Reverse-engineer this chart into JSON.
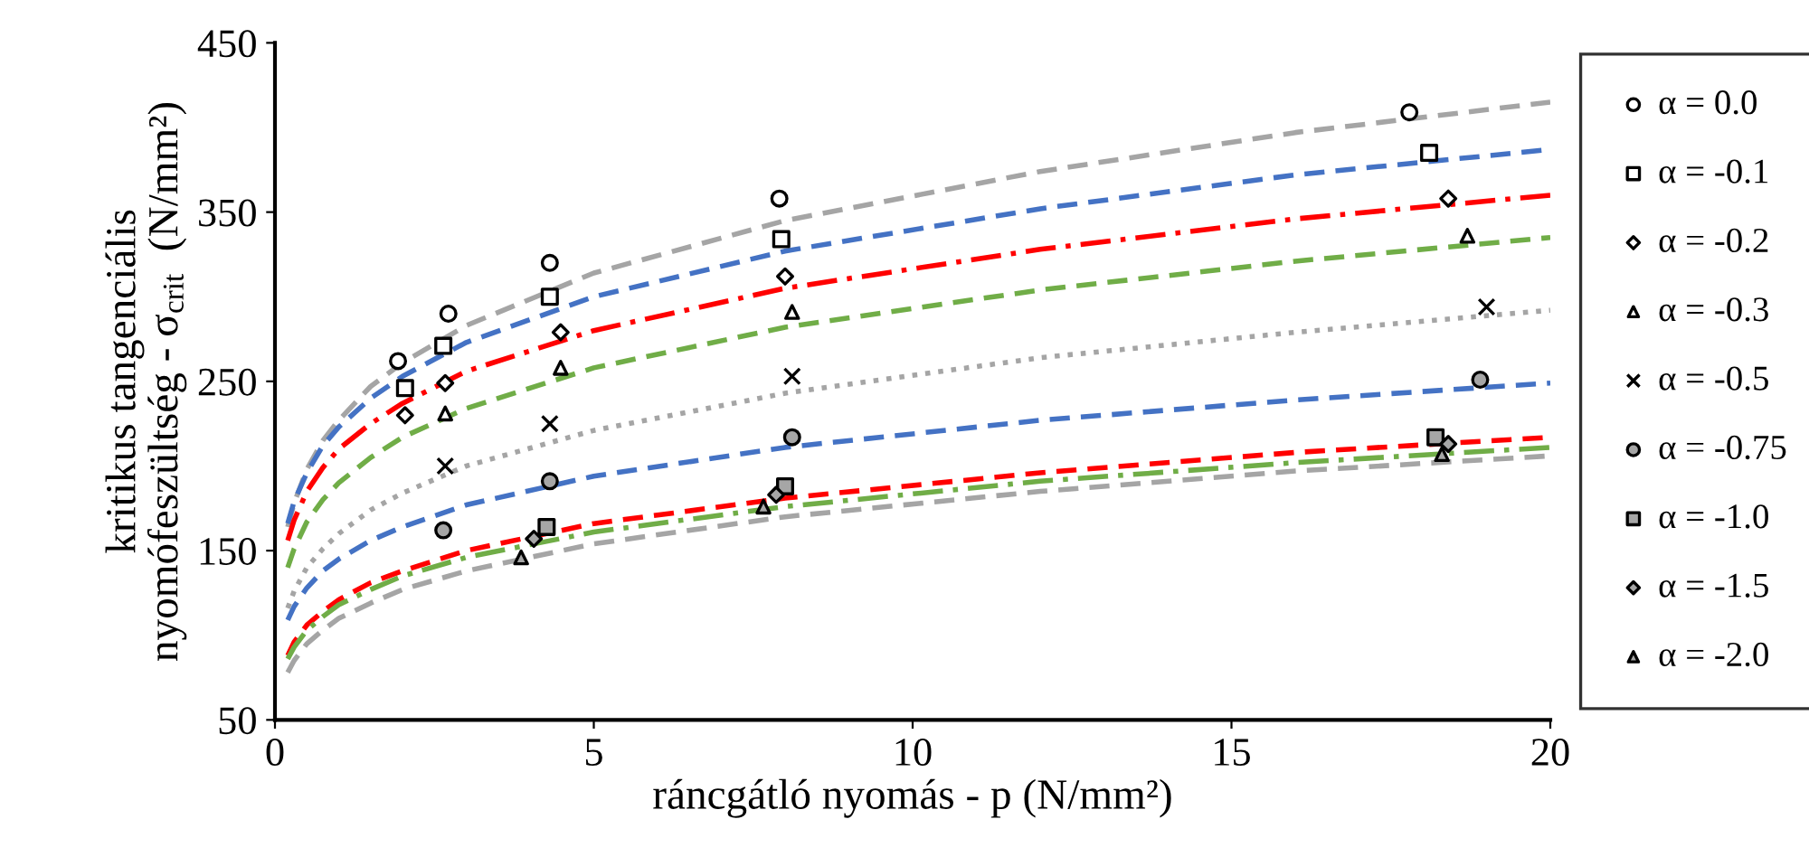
{
  "chart_data": {
    "type": "scatter",
    "xlabel": "ráncgátló nyomás - p (N/mm²)",
    "ylabel": "kritikus tangenciális\nnyomófeszültség - σ$_{crit}$  (N/mm²)",
    "xlim": [
      0,
      20
    ],
    "xticks": [
      0,
      5,
      10,
      15,
      20
    ],
    "ylim": [
      50,
      450
    ],
    "yticks": [
      50,
      150,
      250,
      350,
      450
    ],
    "grid": false,
    "legend": "right",
    "series": [
      {
        "name": "α = 0.0",
        "color": "#ffffff",
        "marker": "circle",
        "x": [
          1.93,
          2.72,
          4.31,
          7.91,
          17.79
        ],
        "values": [
          262,
          290,
          320,
          358,
          409
        ]
      },
      {
        "name": "α = -0.1",
        "color": "#ffffff",
        "marker": "square",
        "x": [
          2.04,
          2.64,
          4.31,
          7.94,
          18.1
        ],
        "values": [
          246,
          271,
          300,
          334,
          385
        ]
      },
      {
        "name": "α = -0.2",
        "color": "#ffffff",
        "marker": "diamond",
        "x": [
          2.04,
          2.67,
          4.48,
          8.0,
          18.4
        ],
        "values": [
          230,
          249,
          279,
          312,
          358
        ]
      },
      {
        "name": "α = -0.3",
        "color": "#ffffff",
        "marker": "triangle",
        "x": [
          2.67,
          4.48,
          8.11,
          18.7
        ],
        "values": [
          231,
          258,
          291,
          336
        ]
      },
      {
        "name": "α = -0.5",
        "color": "#000000",
        "marker": "cross",
        "x": [
          2.67,
          4.31,
          8.11,
          19.0
        ],
        "values": [
          200,
          225,
          253,
          294
        ]
      },
      {
        "name": "α = -0.75",
        "color": "#a6a6a6",
        "marker": "circle",
        "x": [
          2.64,
          4.31,
          8.11,
          18.9
        ],
        "values": [
          162,
          191,
          217,
          251
        ]
      },
      {
        "name": "α = -1.0",
        "color": "#a6a6a6",
        "marker": "square",
        "x": [
          4.26,
          8.0,
          18.2
        ],
        "values": [
          164,
          188,
          217
        ]
      },
      {
        "name": "α = -1.5",
        "color": "#a6a6a6",
        "marker": "diamond",
        "x": [
          4.06,
          7.86,
          18.4
        ],
        "values": [
          157,
          183,
          213
        ]
      },
      {
        "name": "α = -2.0",
        "color": "#a6a6a6",
        "marker": "triangle",
        "x": [
          3.86,
          7.66,
          18.3
        ],
        "values": [
          146,
          176,
          207
        ]
      },
      {
        "type": "line",
        "color": "#a5a5a5",
        "line_style": "dashed",
        "x": [
          0.2,
          0.3,
          0.5,
          0.75,
          1,
          1.5,
          2,
          3,
          5,
          8,
          12,
          16,
          20
        ],
        "values": [
          164,
          178,
          198,
          215,
          227,
          247,
          261,
          283,
          314,
          345,
          374,
          397,
          415
        ]
      },
      {
        "type": "line",
        "color": "#4472c4",
        "line_style": "dashed",
        "x": [
          0.2,
          0.3,
          0.5,
          0.75,
          1,
          1.5,
          2,
          3,
          5,
          8,
          12,
          16,
          20
        ],
        "values": [
          166,
          179,
          196,
          212,
          223,
          240,
          253,
          273,
          300,
          327,
          352,
          372,
          387
        ]
      },
      {
        "type": "line",
        "color": "#ff0000",
        "line_style": "dashdot",
        "x": [
          0.2,
          0.3,
          0.5,
          0.75,
          1,
          1.5,
          2,
          3,
          5,
          8,
          12,
          16,
          20
        ],
        "values": [
          156,
          168,
          185,
          199,
          210,
          225,
          237,
          256,
          280,
          305,
          328,
          346,
          360
        ]
      },
      {
        "type": "line",
        "color": "#70ad47",
        "line_style": "dashed",
        "x": [
          0.2,
          0.3,
          0.5,
          0.75,
          1,
          1.5,
          2,
          3,
          5,
          8,
          12,
          16,
          20
        ],
        "values": [
          140,
          151,
          167,
          180,
          190,
          205,
          217,
          234,
          258,
          282,
          304,
          321,
          335
        ]
      },
      {
        "type": "line",
        "color": "#a5a5a5",
        "line_style": "dotted",
        "x": [
          0.2,
          0.3,
          0.5,
          0.75,
          1,
          1.5,
          2,
          3,
          5,
          8,
          12,
          16,
          20
        ],
        "values": [
          116,
          126,
          140,
          151,
          160,
          174,
          184,
          200,
          221,
          243,
          264,
          279,
          292
        ]
      },
      {
        "type": "line",
        "color": "#4472c4",
        "line_style": "dashed",
        "x": [
          0.2,
          0.3,
          0.5,
          0.75,
          1,
          1.5,
          2,
          3,
          5,
          8,
          12,
          16,
          20
        ],
        "values": [
          109,
          117,
          128,
          138,
          145,
          156,
          164,
          177,
          194,
          211,
          227,
          239,
          249
        ]
      },
      {
        "type": "line",
        "color": "#ff0000",
        "line_style": "dashed",
        "x": [
          0.2,
          0.3,
          0.5,
          0.75,
          1,
          1.5,
          2,
          3,
          5,
          8,
          12,
          16,
          20
        ],
        "values": [
          88,
          96,
          106,
          114,
          121,
          131,
          138,
          150,
          166,
          181,
          196,
          208,
          217
        ]
      },
      {
        "type": "line",
        "color": "#70ad47",
        "line_style": "dashdot",
        "x": [
          0.2,
          0.3,
          0.5,
          0.75,
          1,
          1.5,
          2,
          3,
          5,
          8,
          12,
          16,
          20
        ],
        "values": [
          86,
          93,
          103,
          111,
          118,
          127,
          135,
          146,
          161,
          176,
          191,
          202,
          211
        ]
      },
      {
        "type": "line",
        "color": "#a5a5a5",
        "line_style": "dashed",
        "x": [
          0.2,
          0.3,
          0.5,
          0.75,
          1,
          1.5,
          2,
          3,
          5,
          8,
          12,
          16,
          20
        ],
        "values": [
          78,
          85,
          95,
          103,
          110,
          119,
          127,
          138,
          154,
          170,
          185,
          197,
          206
        ]
      }
    ]
  }
}
